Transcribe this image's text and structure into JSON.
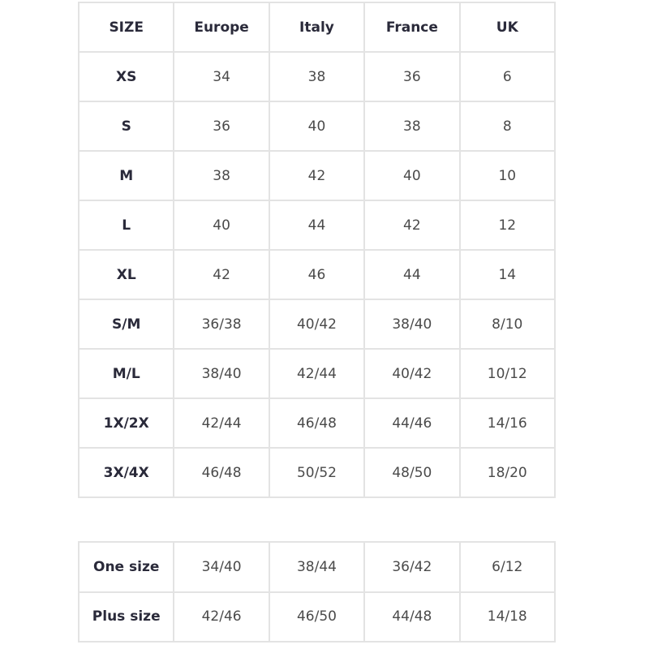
{
  "size_table": {
    "headers": [
      "SIZE",
      "Europe",
      "Italy",
      "France",
      "UK"
    ],
    "rows": [
      [
        "XS",
        "34",
        "38",
        "36",
        "6"
      ],
      [
        "S",
        "36",
        "40",
        "38",
        "8"
      ],
      [
        "M",
        "38",
        "42",
        "40",
        "10"
      ],
      [
        "L",
        "40",
        "44",
        "42",
        "12"
      ],
      [
        "XL",
        "42",
        "46",
        "44",
        "14"
      ],
      [
        "S/M",
        "36/38",
        "40/42",
        "38/40",
        "8/10"
      ],
      [
        "M/L",
        "38/40",
        "42/44",
        "40/42",
        "10/12"
      ],
      [
        "1X/2X",
        "42/44",
        "46/48",
        "44/46",
        "14/16"
      ],
      [
        "3X/4X",
        "46/48",
        "50/52",
        "48/50",
        "18/20"
      ]
    ]
  },
  "special_table": {
    "rows": [
      [
        "One size",
        "34/40",
        "38/44",
        "36/42",
        "6/12"
      ],
      [
        "Plus size",
        "42/46",
        "46/50",
        "44/48",
        "14/18"
      ]
    ]
  },
  "colors": {
    "border": "#e3e3e3",
    "header_text": "#2a2a3a",
    "cell_text": "#4a4a4a"
  }
}
